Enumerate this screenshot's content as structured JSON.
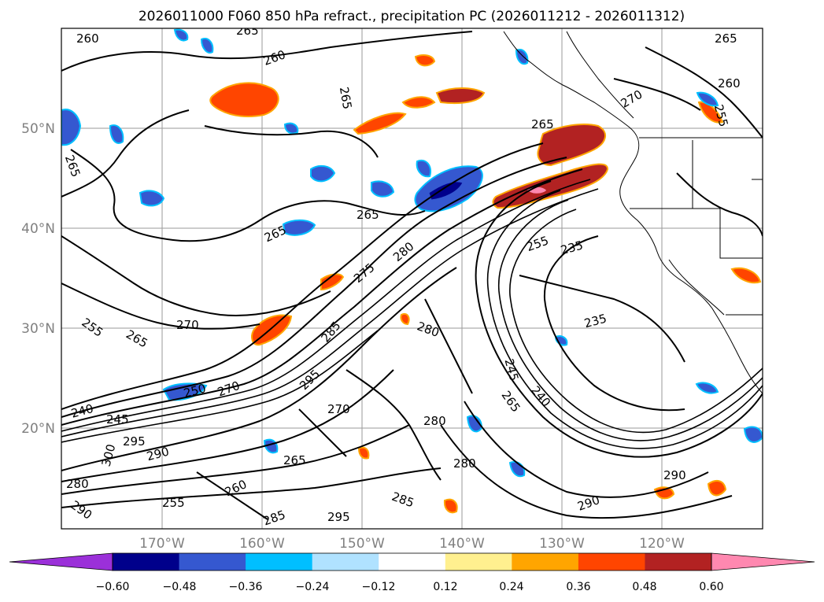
{
  "title": "2026011000 F060 850 hPa refract., precipitation PC (2026011212 - 2026011312)",
  "map": {
    "lon_labels": [
      "170°W",
      "160°W",
      "150°W",
      "140°W",
      "130°W",
      "120°W"
    ],
    "lat_labels": [
      "50°N",
      "40°N",
      "30°N",
      "20°N"
    ],
    "contour_labels": [
      "260",
      "265",
      "265",
      "265",
      "265",
      "265",
      "260",
      "270",
      "255",
      "260",
      "265",
      "265",
      "275",
      "280",
      "285",
      "295",
      "270",
      "265",
      "270",
      "280",
      "280",
      "255",
      "235",
      "235",
      "245",
      "240",
      "265",
      "290",
      "280",
      "285",
      "290",
      "295",
      "240",
      "245",
      "255",
      "260",
      "280",
      "295",
      "290",
      "300",
      "285",
      "250",
      "255",
      "265",
      "290",
      "270"
    ],
    "colors": {
      "neg_extreme": "#9b30d9",
      "neg_060": "#00008b",
      "neg_048": "#3558d0",
      "neg_036": "#00bfff",
      "neg_024": "#b0e2ff",
      "zero": "#ffffff",
      "pos_012": "#fff08f",
      "pos_024": "#ffa500",
      "pos_036": "#ff4500",
      "pos_048": "#b22222",
      "pos_extreme": "#ff88b0"
    }
  },
  "colorbar": {
    "ticks": [
      "−0.60",
      "−0.48",
      "−0.36",
      "−0.24",
      "−0.12",
      "0.12",
      "0.24",
      "0.36",
      "0.48",
      "0.60"
    ],
    "segments": [
      "#00008b",
      "#3558d0",
      "#3558d0",
      "#00bfff",
      "#b0e2ff",
      "#ffffff",
      "#fff08f",
      "#ffa500",
      "#ff4500",
      "#b22222",
      "#ff88b0"
    ],
    "min_color": "#9b30d9",
    "max_color": "#ff88b0"
  }
}
